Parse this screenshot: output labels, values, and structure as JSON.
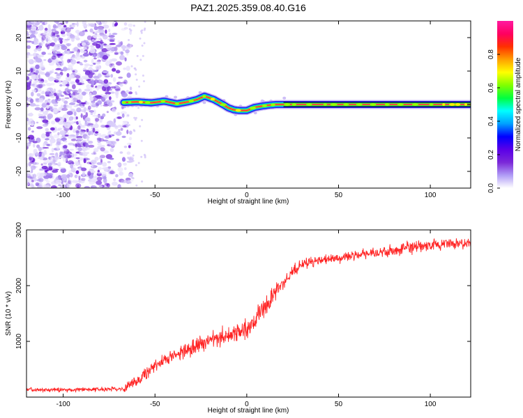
{
  "figure_title": "PAZ1.2025.359.08.40.G16",
  "chart_data": [
    {
      "type": "heatmap",
      "title": "PAZ1.2025.359.08.40.G16",
      "xlabel": "Height of straight line (km)",
      "ylabel": "Frequency (Hz)",
      "xlim": [
        -120,
        122
      ],
      "ylim": [
        -25,
        25
      ],
      "xticks": [
        -100,
        -50,
        0,
        50,
        100
      ],
      "yticks": [
        -20,
        -10,
        0,
        10,
        20
      ],
      "noise_region_x": [
        -120,
        -65
      ],
      "ridge": {
        "x": [
          -67,
          -60,
          -52,
          -45,
          -38,
          -32,
          -27,
          -23,
          -18,
          -13,
          -10,
          -7,
          -4,
          0,
          4,
          8,
          12,
          16,
          20,
          30,
          40,
          50,
          60,
          70,
          78,
          85,
          95,
          105,
          122
        ],
        "y": [
          0.6,
          0.8,
          0.5,
          1.0,
          0.2,
          0.8,
          1.5,
          2.5,
          1.5,
          0,
          -1.0,
          -1.6,
          -1.8,
          -1.8,
          -0.9,
          -0.5,
          -0.2,
          0,
          0,
          0,
          0,
          0,
          0,
          0,
          0,
          0,
          0,
          0,
          0
        ]
      },
      "reference_line_y": 0
    },
    {
      "type": "line",
      "xlabel": "Height of straight line (km)",
      "ylabel": "SNR (10 * v/v)",
      "xlim": [
        -120,
        122
      ],
      "ylim": [
        0,
        3000
      ],
      "xticks": [
        -100,
        -50,
        0,
        50,
        100
      ],
      "yticks": [
        1000,
        2000,
        3000
      ],
      "series": [
        {
          "name": "SNR",
          "color": "#ff2222",
          "x": [
            -120,
            -100,
            -80,
            -68,
            -65,
            -60,
            -55,
            -50,
            -40,
            -30,
            -20,
            -10,
            0,
            5,
            10,
            15,
            20,
            25,
            30,
            40,
            50,
            60,
            70,
            80,
            90,
            100,
            110,
            122
          ],
          "y": [
            130,
            130,
            140,
            150,
            180,
            300,
            430,
            560,
            750,
            900,
            1000,
            1100,
            1230,
            1400,
            1600,
            1850,
            2050,
            2250,
            2390,
            2460,
            2500,
            2550,
            2580,
            2630,
            2680,
            2720,
            2750,
            2760
          ]
        }
      ]
    }
  ],
  "colorbar": {
    "label": "Normalized spectral amplitude",
    "ticks": [
      0.0,
      0.2,
      0.4,
      0.6,
      0.8
    ],
    "tick_labels": [
      "0.0",
      "0.2",
      "0.4",
      "0.6",
      "0.8"
    ],
    "range": [
      0,
      1
    ],
    "colors": [
      "#ffffff",
      "#b09cf6",
      "#7b28d8",
      "#5a00e8",
      "#0000ff",
      "#00a0ff",
      "#00ffff",
      "#00ff40",
      "#80ff00",
      "#ffff00",
      "#ffa000",
      "#ff3000",
      "#ff0060",
      "#ff1aa0"
    ]
  }
}
